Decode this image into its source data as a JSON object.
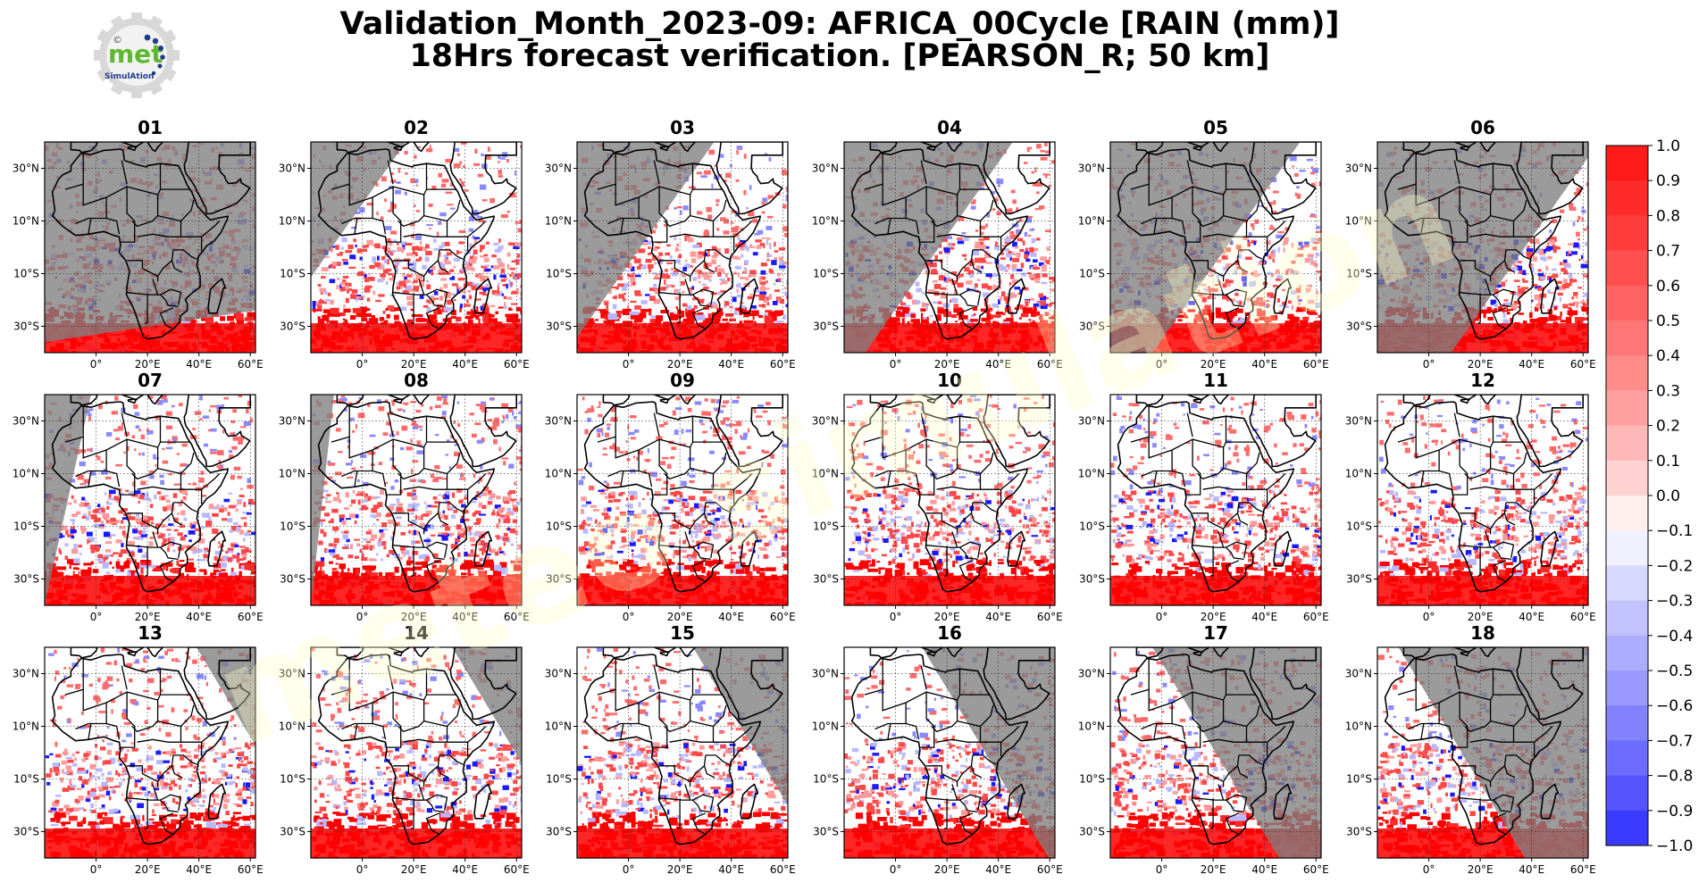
{
  "header": {
    "title_line1": "Validation_Month_2023-09: AFRICA_00Cycle [RAIN (mm)]",
    "title_line2": "18Hrs forecast verification.  [PEARSON_R; 50 km]"
  },
  "logo": {
    "word": "met",
    "subword": "SimulAtion",
    "symbol": "©"
  },
  "watermark": "meteo simulation",
  "panels": [
    {
      "label": "01",
      "fill": 0.05,
      "terminator": null
    },
    {
      "label": "02",
      "fill": 0.1,
      "terminator": "east"
    },
    {
      "label": "03",
      "fill": 0.3,
      "terminator": "east"
    },
    {
      "label": "04",
      "fill": 0.45,
      "terminator": "east"
    },
    {
      "label": "05",
      "fill": 0.55,
      "terminator": "east"
    },
    {
      "label": "06",
      "fill": 0.7,
      "terminator": "east"
    },
    {
      "label": "07",
      "fill": 0.9,
      "terminator": "west"
    },
    {
      "label": "08",
      "fill": 0.95,
      "terminator": "west"
    },
    {
      "label": "09",
      "fill": 1.0,
      "terminator": null
    },
    {
      "label": "10",
      "fill": 1.0,
      "terminator": null
    },
    {
      "label": "11",
      "fill": 1.0,
      "terminator": null
    },
    {
      "label": "12",
      "fill": 1.0,
      "terminator": null
    },
    {
      "label": "13",
      "fill": 0.97,
      "terminator": "east"
    },
    {
      "label": "14",
      "fill": 0.92,
      "terminator": "east"
    },
    {
      "label": "15",
      "fill": 0.8,
      "terminator": "east"
    },
    {
      "label": "16",
      "fill": 0.62,
      "terminator": "east"
    },
    {
      "label": "17",
      "fill": 0.45,
      "terminator": "east"
    },
    {
      "label": "18",
      "fill": 0.35,
      "terminator": "east"
    }
  ],
  "axes": {
    "y_ticks": [
      "30°N",
      "10°N",
      "10°S",
      "30°S"
    ],
    "x_ticks": [
      "0°",
      "20°E",
      "40°E",
      "60°E"
    ]
  },
  "colorbar": {
    "ticks": [
      "1.0",
      "0.9",
      "0.8",
      "0.7",
      "0.6",
      "0.5",
      "0.4",
      "0.3",
      "0.2",
      "0.1",
      "0.0",
      "−0.1",
      "−0.2",
      "−0.3",
      "−0.4",
      "−0.5",
      "−0.6",
      "−0.7",
      "−0.8",
      "−0.9",
      "−1.0"
    ],
    "colors_top_to_bottom": [
      "#ff1a1a",
      "#ff2b2b",
      "#ff3c3c",
      "#ff4f4f",
      "#ff6262",
      "#ff7676",
      "#ff8b8b",
      "#ffa0a0",
      "#ffb8b8",
      "#ffd2d2",
      "#fff0f0",
      "#f0f0ff",
      "#d8d8ff",
      "#c2c2ff",
      "#adadff",
      "#9898ff",
      "#8282ff",
      "#6c6cff",
      "#5454ff",
      "#3b3bff",
      "#1c1cff"
    ]
  },
  "colors": {
    "night_shade": "#7f7f7f",
    "land_outline": "#000000",
    "positive": "#ff2020",
    "dark_positive": "#8b0000",
    "negative": "#2020ff",
    "light_negative": "#b8b8ff"
  }
}
